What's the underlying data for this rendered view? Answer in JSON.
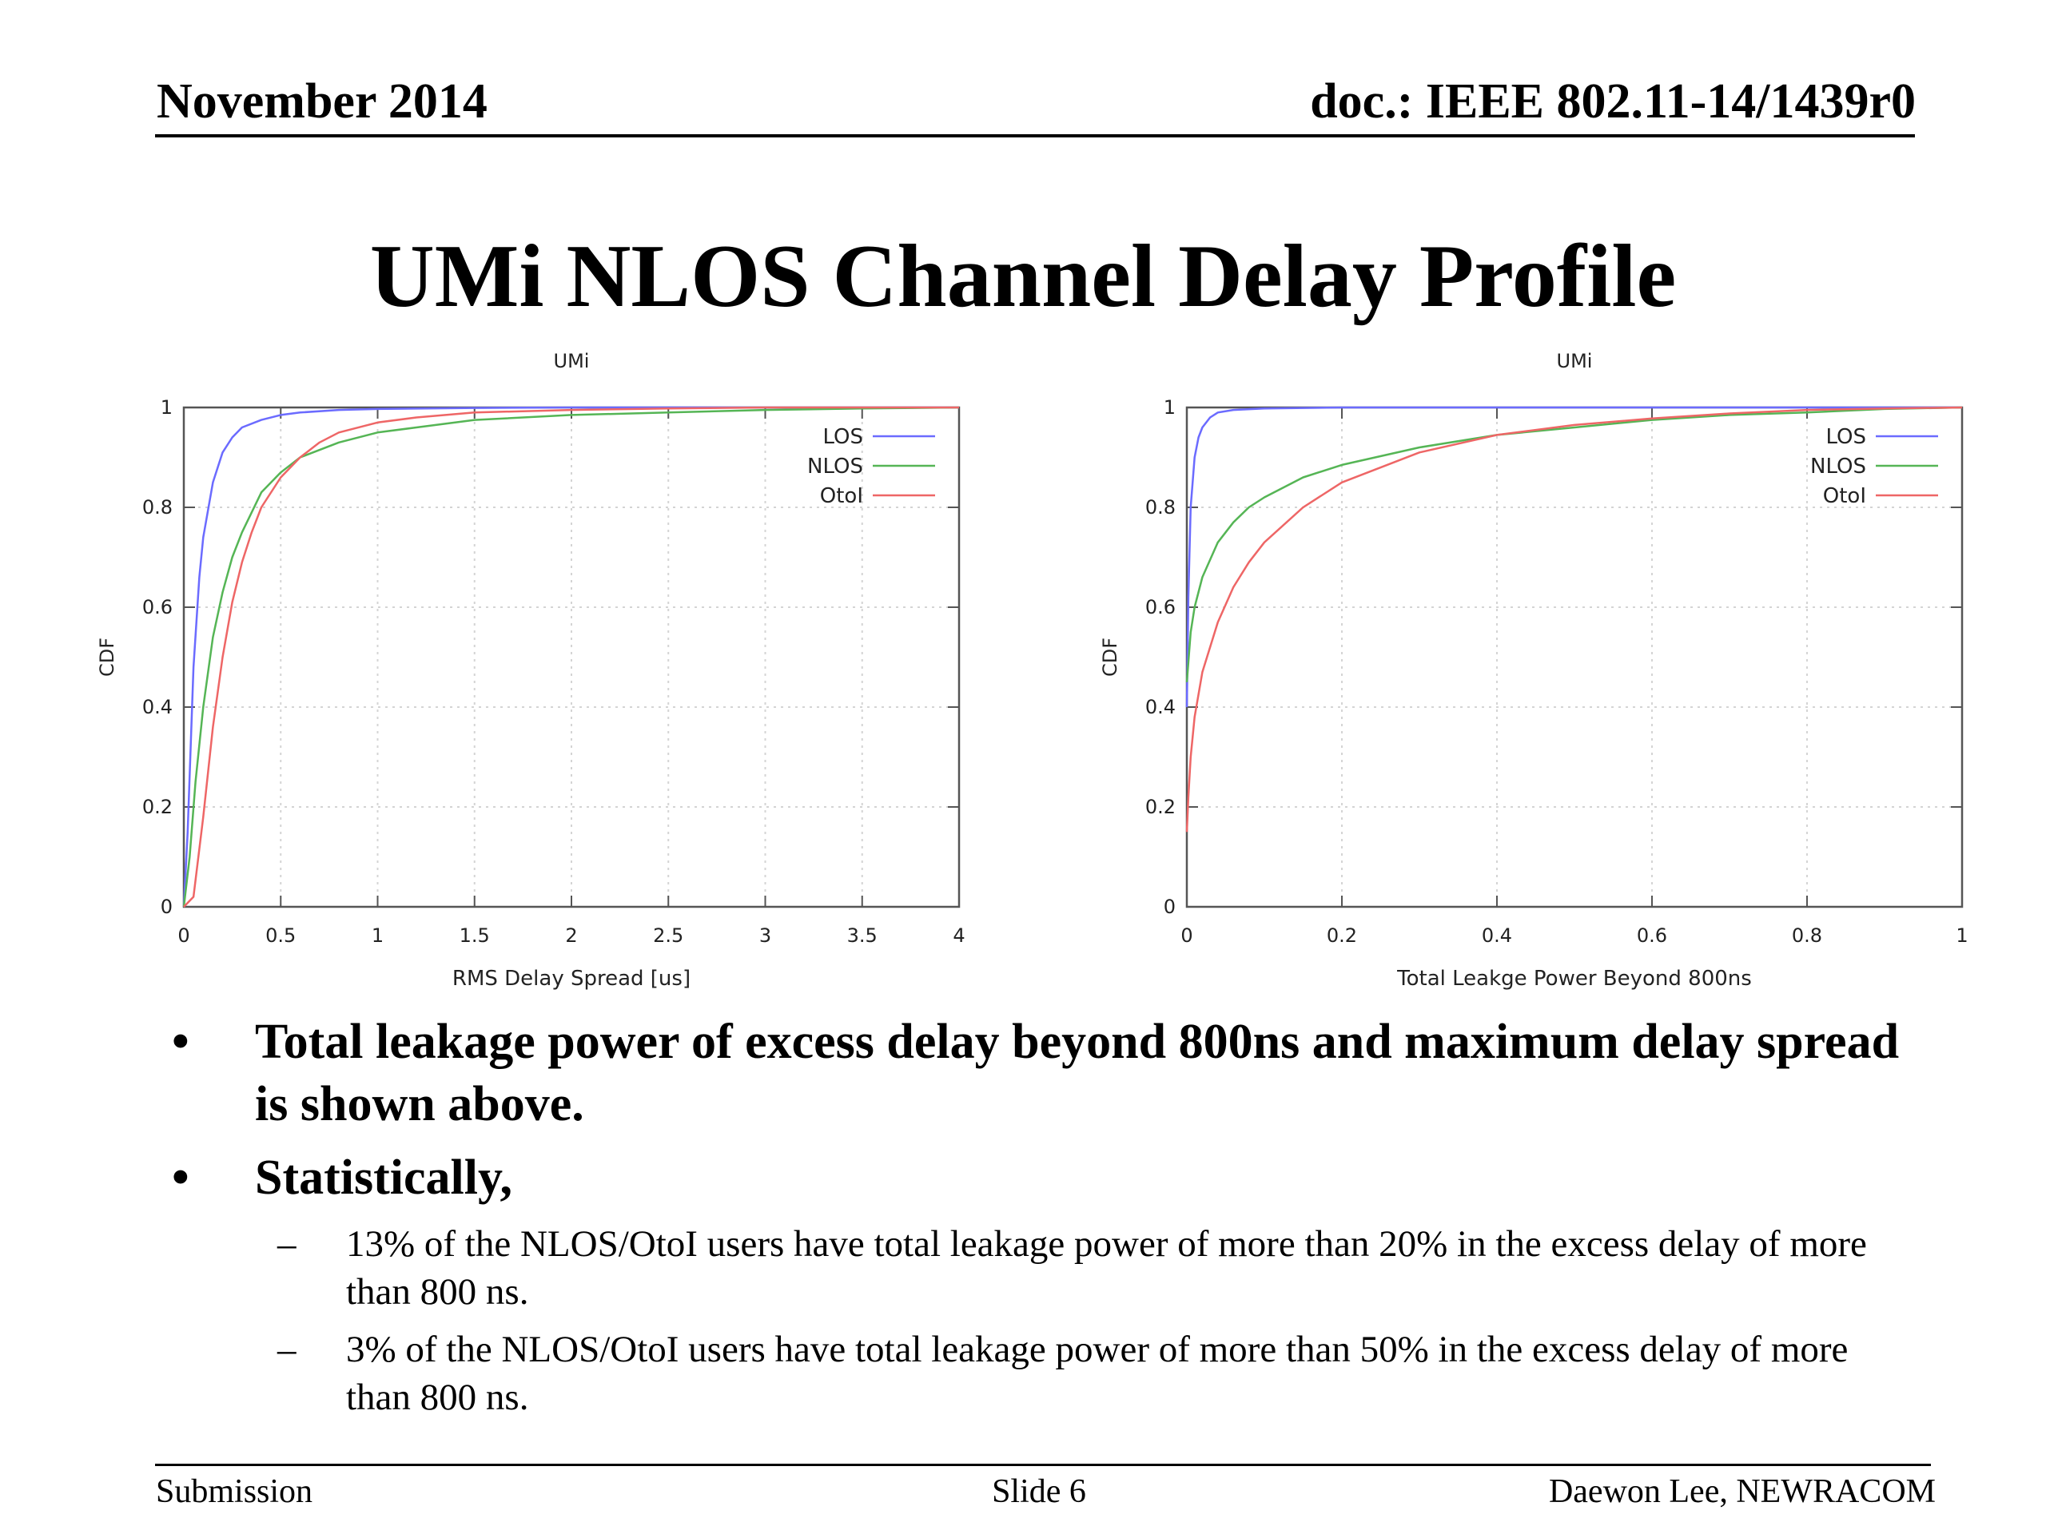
{
  "header": {
    "date": "November 2014",
    "doc": "doc.: IEEE 802.11-14/1439r0"
  },
  "title": "UMi NLOS Channel Delay Profile",
  "chart_data": [
    {
      "type": "line",
      "title": "UMi",
      "xlabel": "RMS Delay Spread [us]",
      "ylabel": "CDF",
      "xlim": [
        0,
        4
      ],
      "ylim": [
        0,
        1
      ],
      "xticks": [
        "0",
        "0.5",
        "1",
        "1.5",
        "2",
        "2.5",
        "3",
        "3.5",
        "4"
      ],
      "yticks": [
        "0",
        "0.2",
        "0.4",
        "0.6",
        "0.8",
        "1"
      ],
      "grid": true,
      "legend_position": "top-right",
      "series": [
        {
          "name": "LOS",
          "color": "#6b6bff",
          "x": [
            0,
            0.02,
            0.05,
            0.08,
            0.1,
            0.15,
            0.2,
            0.25,
            0.3,
            0.4,
            0.5,
            0.6,
            0.8,
            1.0,
            1.5,
            2.0,
            3.0,
            4.0
          ],
          "y": [
            0,
            0.15,
            0.48,
            0.66,
            0.74,
            0.85,
            0.91,
            0.94,
            0.96,
            0.975,
            0.985,
            0.99,
            0.995,
            0.997,
            0.999,
            1.0,
            1.0,
            1.0
          ]
        },
        {
          "name": "NLOS",
          "color": "#55b555",
          "x": [
            0,
            0.03,
            0.06,
            0.1,
            0.15,
            0.2,
            0.25,
            0.3,
            0.4,
            0.5,
            0.6,
            0.8,
            1.0,
            1.2,
            1.5,
            2.0,
            2.5,
            3.0,
            3.5,
            4.0
          ],
          "y": [
            0,
            0.1,
            0.25,
            0.4,
            0.54,
            0.63,
            0.7,
            0.75,
            0.83,
            0.87,
            0.9,
            0.93,
            0.95,
            0.96,
            0.975,
            0.985,
            0.99,
            0.995,
            0.998,
            1.0
          ]
        },
        {
          "name": "OtoI",
          "color": "#ee6666",
          "x": [
            0,
            0.05,
            0.1,
            0.15,
            0.2,
            0.25,
            0.3,
            0.35,
            0.4,
            0.5,
            0.6,
            0.7,
            0.8,
            1.0,
            1.2,
            1.5,
            2.0,
            2.5,
            3.0,
            4.0
          ],
          "y": [
            0,
            0.02,
            0.18,
            0.36,
            0.5,
            0.61,
            0.69,
            0.75,
            0.8,
            0.86,
            0.9,
            0.93,
            0.95,
            0.97,
            0.98,
            0.99,
            0.995,
            0.998,
            1.0,
            1.0
          ]
        }
      ]
    },
    {
      "type": "line",
      "title": "UMi",
      "xlabel": "Total Leakge Power Beyond 800ns",
      "ylabel": "CDF",
      "xlim": [
        0,
        1
      ],
      "ylim": [
        0,
        1
      ],
      "xticks": [
        "0",
        "0.2",
        "0.4",
        "0.6",
        "0.8",
        "1"
      ],
      "yticks": [
        "0",
        "0.2",
        "0.4",
        "0.6",
        "0.8",
        "1"
      ],
      "grid": true,
      "legend_position": "top-right",
      "series": [
        {
          "name": "LOS",
          "color": "#6b6bff",
          "x": [
            0,
            0.002,
            0.005,
            0.01,
            0.015,
            0.02,
            0.03,
            0.04,
            0.06,
            0.1,
            0.2,
            0.5,
            1.0
          ],
          "y": [
            0.4,
            0.62,
            0.8,
            0.9,
            0.94,
            0.96,
            0.98,
            0.99,
            0.995,
            0.998,
            1.0,
            1.0,
            1.0
          ]
        },
        {
          "name": "NLOS",
          "color": "#55b555",
          "x": [
            0,
            0.005,
            0.01,
            0.02,
            0.04,
            0.06,
            0.08,
            0.1,
            0.15,
            0.2,
            0.3,
            0.4,
            0.5,
            0.6,
            0.7,
            0.8,
            0.9,
            1.0
          ],
          "y": [
            0.45,
            0.55,
            0.6,
            0.66,
            0.73,
            0.77,
            0.8,
            0.82,
            0.86,
            0.885,
            0.92,
            0.945,
            0.96,
            0.975,
            0.985,
            0.99,
            0.997,
            1.0
          ]
        },
        {
          "name": "OtoI",
          "color": "#ee6666",
          "x": [
            0,
            0.002,
            0.005,
            0.01,
            0.02,
            0.04,
            0.06,
            0.08,
            0.1,
            0.15,
            0.2,
            0.3,
            0.4,
            0.5,
            0.6,
            0.7,
            0.8,
            0.9,
            1.0
          ],
          "y": [
            0.15,
            0.22,
            0.3,
            0.38,
            0.47,
            0.57,
            0.64,
            0.69,
            0.73,
            0.8,
            0.85,
            0.91,
            0.945,
            0.965,
            0.978,
            0.988,
            0.995,
            0.998,
            1.0
          ]
        }
      ]
    }
  ],
  "bullets": [
    {
      "mark": "•",
      "text": "Total leakage power of excess delay beyond 800ns and maximum delay spread is shown above."
    },
    {
      "mark": "•",
      "text": "Statistically,"
    }
  ],
  "sub_bullets": [
    {
      "mark": "–",
      "text": "13% of the NLOS/OtoI users have total leakage power of more than 20% in the excess delay of more than 800 ns."
    },
    {
      "mark": "–",
      "text": "3% of the NLOS/OtoI users have total leakage power of more than 50% in the excess delay of more than 800 ns."
    }
  ],
  "footer": {
    "left": "Submission",
    "center": "Slide 6",
    "right": "Daewon Lee, NEWRACOM"
  }
}
